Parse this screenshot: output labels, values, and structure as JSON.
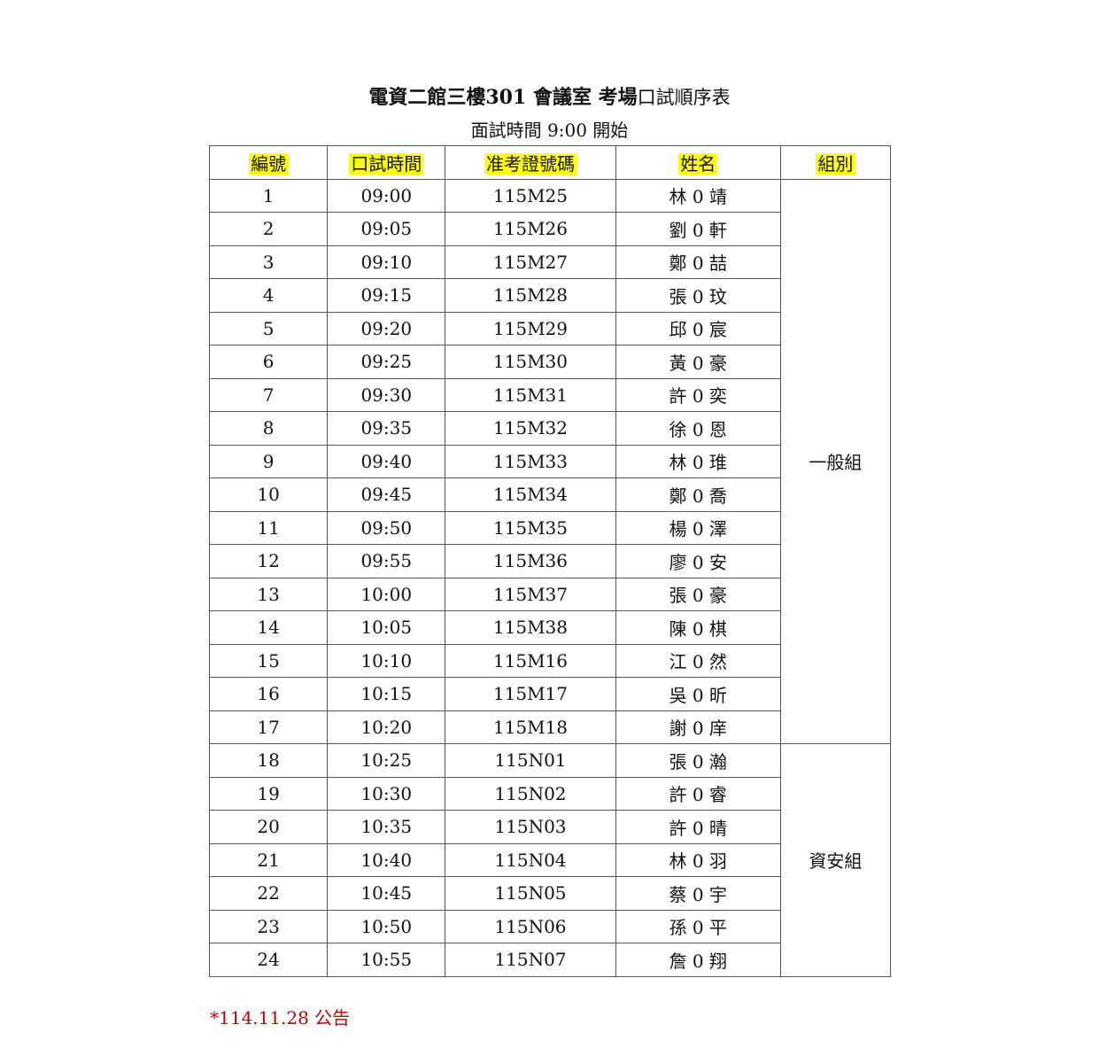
{
  "title": {
    "bold": "電資二館三樓301 會議室 考場",
    "normal": "口試順序表"
  },
  "subtitle": "面試時間 9:00 開始",
  "columns": [
    "編號",
    "口試時間",
    "准考證號碼",
    "姓名",
    "組別"
  ],
  "header_highlight_color": "#ffff00",
  "rows": [
    [
      "1",
      "09:00",
      "115M25",
      "林 0 靖"
    ],
    [
      "2",
      "09:05",
      "115M26",
      "劉 0 軒"
    ],
    [
      "3",
      "09:10",
      "115M27",
      "鄭 0 喆"
    ],
    [
      "4",
      "09:15",
      "115M28",
      "張 0 玟"
    ],
    [
      "5",
      "09:20",
      "115M29",
      "邱 0 宸"
    ],
    [
      "6",
      "09:25",
      "115M30",
      "黃 0 豪"
    ],
    [
      "7",
      "09:30",
      "115M31",
      "許 0 奕"
    ],
    [
      "8",
      "09:35",
      "115M32",
      "徐 0 恩"
    ],
    [
      "9",
      "09:40",
      "115M33",
      "林 0 琟"
    ],
    [
      "10",
      "09:45",
      "115M34",
      "鄭 0 喬"
    ],
    [
      "11",
      "09:50",
      "115M35",
      "楊 0 澤"
    ],
    [
      "12",
      "09:55",
      "115M36",
      "廖 0 安"
    ],
    [
      "13",
      "10:00",
      "115M37",
      "張 0 豪"
    ],
    [
      "14",
      "10:05",
      "115M38",
      "陳 0 棋"
    ],
    [
      "15",
      "10:10",
      "115M16",
      "江 0 然"
    ],
    [
      "16",
      "10:15",
      "115M17",
      "吳 0 昕"
    ],
    [
      "17",
      "10:20",
      "115M18",
      "謝 0 庠"
    ],
    [
      "18",
      "10:25",
      "115N01",
      "張 0 瀚"
    ],
    [
      "19",
      "10:30",
      "115N02",
      "許 0 睿"
    ],
    [
      "20",
      "10:35",
      "115N03",
      "許 0 晴"
    ],
    [
      "21",
      "10:40",
      "115N04",
      "林 0 羽"
    ],
    [
      "22",
      "10:45",
      "115N05",
      "蔡 0 宇"
    ],
    [
      "23",
      "10:50",
      "115N06",
      "孫 0 平"
    ],
    [
      "24",
      "10:55",
      "115N07",
      "詹 0 翔"
    ]
  ],
  "groups": [
    {
      "label": "一般組",
      "count": 17
    },
    {
      "label": "資安組",
      "count": 7
    }
  ],
  "footnote": "*114.11.28 公告",
  "footnote_color": "#c00000"
}
